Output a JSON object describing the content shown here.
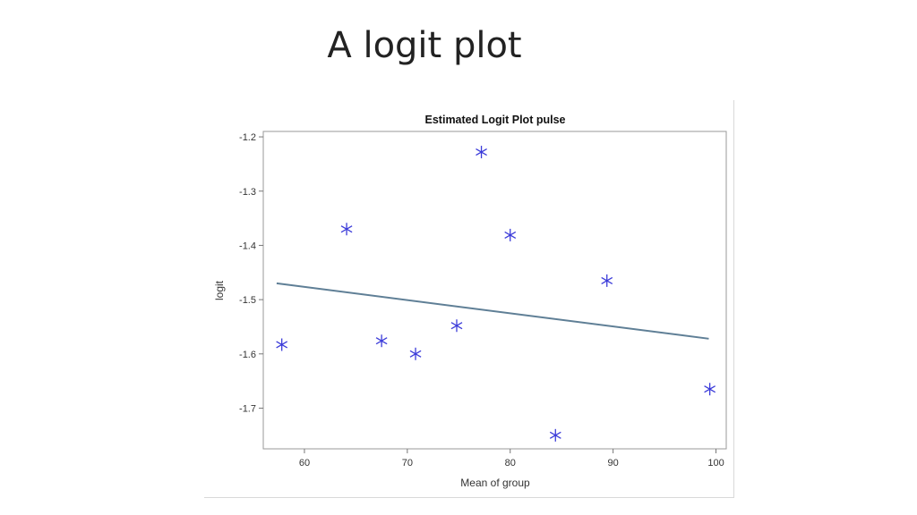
{
  "slide": {
    "title": "A logit plot"
  },
  "chart_data": {
    "type": "scatter",
    "title": "Estimated Logit Plot pulse",
    "xlabel": "Mean of group",
    "ylabel": "logit",
    "xlim": [
      56,
      101
    ],
    "ylim": [
      -1.775,
      -1.19
    ],
    "x_ticks": [
      60,
      70,
      80,
      90,
      100
    ],
    "y_ticks": [
      -1.2,
      -1.3,
      -1.4,
      -1.5,
      -1.6,
      -1.7
    ],
    "grid": false,
    "legend": "none",
    "marker": "asterisk",
    "marker_color": "#3b3bd9",
    "fit_line_color": "#5f7f96",
    "points": [
      {
        "x": 57.8,
        "y": -1.583
      },
      {
        "x": 64.1,
        "y": -1.37
      },
      {
        "x": 67.5,
        "y": -1.576
      },
      {
        "x": 70.8,
        "y": -1.6
      },
      {
        "x": 74.8,
        "y": -1.548
      },
      {
        "x": 77.2,
        "y": -1.228
      },
      {
        "x": 80.0,
        "y": -1.381
      },
      {
        "x": 84.4,
        "y": -1.75
      },
      {
        "x": 89.4,
        "y": -1.465
      },
      {
        "x": 99.4,
        "y": -1.665
      }
    ],
    "fit_line": [
      {
        "x": 57.3,
        "y": -1.47
      },
      {
        "x": 99.3,
        "y": -1.572
      }
    ]
  }
}
